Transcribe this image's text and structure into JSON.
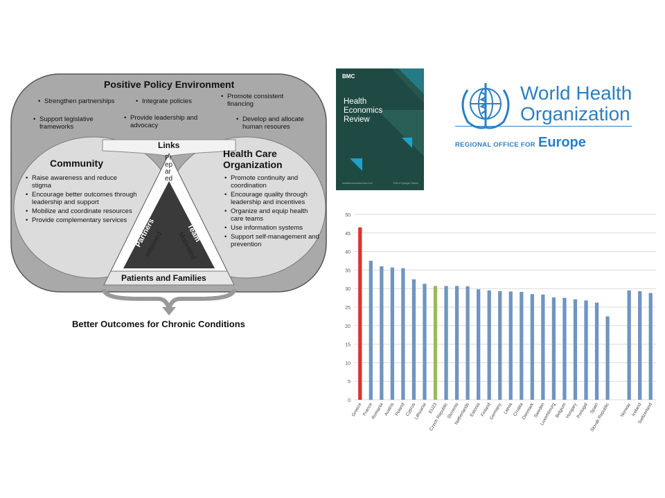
{
  "diagram": {
    "policy_title": "Positive Policy Environment",
    "policy_items": [
      "Strengthen partnerships",
      "Integrate policies",
      "Promote consistent financing",
      "Support legislative frameworks",
      "Provide leadership and advocacy",
      "Develop and allocate human resoures"
    ],
    "links_title": "Links",
    "community_title": "Community",
    "community_items": [
      "Raise awareness and reduce stigma",
      "Encourage better outcomes through leadership and support",
      "Mobilize and coordinate resources",
      "Provide complementary services"
    ],
    "hco_title": "Health Care Organization",
    "hco_items": [
      "Promote continuity and coordination",
      "Encourage quality through leadership and incentives",
      "Organize and equip health care teams",
      "Use information systems",
      "Support self-management and prevention"
    ],
    "prepared": "Prepared",
    "community_partners": "Community Partners",
    "informed": "Informed",
    "health_care_team": "Health Care Team",
    "motivated": "Motivated",
    "patients_families": "Patients and Families",
    "outcome": "Better Outcomes for Chronic Conditions"
  },
  "cover": {
    "brand": "BMC",
    "title": "Health Economics Review",
    "footer_left": "healtheconomicsreview.com",
    "footer_right": "Part of Springer Nature",
    "bg": "#1f4a44",
    "accent": "#1fa2c8"
  },
  "who": {
    "line1": "World Health",
    "line2": "Organization",
    "sub_prefix": "REGIONAL OFFICE FOR",
    "sub_region": "Europe",
    "color": "#2a7fc4",
    "icon": "who-emblem-icon"
  },
  "chart_data": {
    "type": "bar",
    "ylim": [
      0,
      50
    ],
    "yticks": [
      0,
      5,
      10,
      15,
      20,
      25,
      30,
      35,
      40,
      45,
      50
    ],
    "grid": true,
    "categories": [
      "Greece",
      "France",
      "Romania",
      "Austria",
      "Poland",
      "Cyprus",
      "Lithuania",
      "EU23",
      "Czech Republic",
      "Slovenia",
      "Netherlands",
      "Estonia",
      "Finland",
      "Germany",
      "Latvia",
      "Croatia",
      "Denmark",
      "Sweden",
      "Luxembourg",
      "Belgium",
      "Hungary",
      "Portugal",
      "Spain",
      "Slovak Republic",
      "",
      "Norway",
      "Iceland",
      "Switzerland"
    ],
    "values": [
      46.5,
      37.5,
      36.0,
      35.7,
      35.5,
      32.5,
      31.3,
      30.7,
      30.7,
      30.7,
      30.6,
      29.8,
      29.5,
      29.3,
      29.2,
      29.1,
      28.5,
      28.4,
      27.6,
      27.5,
      27.1,
      26.8,
      26.2,
      22.5,
      null,
      29.5,
      29.3,
      28.8
    ],
    "colors": {
      "default": "#6f95c2",
      "highlight": "#e0312f",
      "average": "#9bb95f"
    },
    "highlight_index": 0,
    "average_index": 7
  }
}
